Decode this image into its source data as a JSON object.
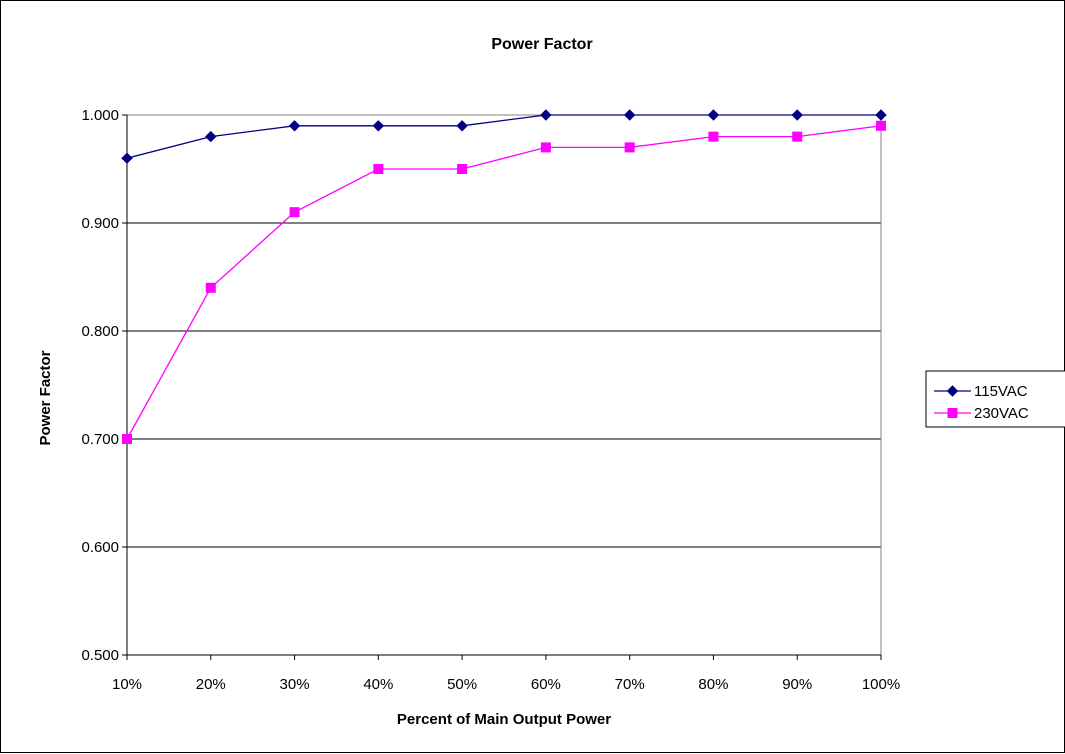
{
  "chart_data": {
    "type": "line",
    "title": "Power Factor",
    "xlabel": "Percent of Main Output Power",
    "ylabel": "Power Factor",
    "categories": [
      "10%",
      "20%",
      "30%",
      "40%",
      "50%",
      "60%",
      "70%",
      "80%",
      "90%",
      "100%"
    ],
    "y_ticks": [
      "0.500",
      "0.600",
      "0.700",
      "0.800",
      "0.900",
      "1.000"
    ],
    "ylim": [
      0.5,
      1.0
    ],
    "grid": "horizontal",
    "legend_position": "right",
    "series": [
      {
        "name": "115VAC",
        "color": "#000080",
        "marker": "diamond",
        "values": [
          0.96,
          0.98,
          0.99,
          0.99,
          0.99,
          1.0,
          1.0,
          1.0,
          1.0,
          1.0
        ]
      },
      {
        "name": "230VAC",
        "color": "#FF00FF",
        "marker": "square",
        "values": [
          0.7,
          0.84,
          0.91,
          0.95,
          0.95,
          0.97,
          0.97,
          0.98,
          0.98,
          0.99
        ]
      }
    ]
  }
}
